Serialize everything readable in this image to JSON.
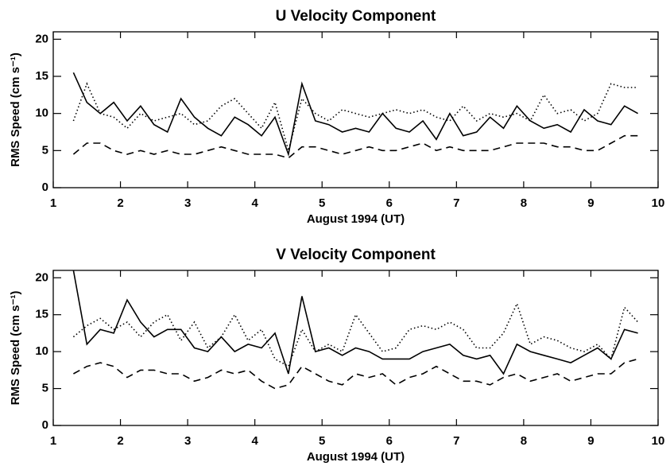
{
  "chart_data": [
    {
      "type": "line",
      "title": "U Velocity Component",
      "xlabel": "August 1994 (UT)",
      "ylabel": "RMS Speed (cm s⁻¹)",
      "x": [
        1.3,
        1.5,
        1.7,
        1.9,
        2.1,
        2.3,
        2.5,
        2.7,
        2.9,
        3.1,
        3.3,
        3.5,
        3.7,
        3.9,
        4.1,
        4.3,
        4.5,
        4.7,
        4.9,
        5.1,
        5.3,
        5.5,
        5.7,
        5.9,
        6.1,
        6.3,
        6.5,
        6.7,
        6.9,
        7.1,
        7.3,
        7.5,
        7.7,
        7.9,
        8.1,
        8.3,
        8.5,
        8.7,
        8.9,
        9.1,
        9.3,
        9.5,
        9.7
      ],
      "series": [
        {
          "color": "#000000",
          "line_style": "solid",
          "values": [
            15.5,
            11.5,
            10,
            11.5,
            9,
            11,
            8.5,
            7.5,
            12,
            9.5,
            8,
            7,
            9.5,
            8.5,
            7,
            9.5,
            4.5,
            14,
            9,
            8.5,
            7.5,
            8,
            7.5,
            10,
            8,
            7.5,
            9,
            6.5,
            10,
            7,
            7.5,
            9.5,
            8,
            11,
            9,
            8,
            8.5,
            7.5,
            10.5,
            9,
            8.5,
            11,
            10
          ]
        },
        {
          "color": "#000000",
          "line_style": "dotted",
          "values": [
            9,
            14,
            10,
            9.5,
            8,
            10,
            9,
            9.5,
            10,
            8.5,
            9,
            11,
            12,
            10,
            8,
            11.5,
            5,
            12,
            10,
            9,
            10.5,
            10,
            9.5,
            10,
            10.5,
            10,
            10.5,
            9.5,
            9,
            11,
            9,
            10,
            9.5,
            10,
            9,
            12.5,
            10,
            10.5,
            9,
            10,
            14,
            13.5,
            13.5
          ]
        },
        {
          "color": "#000000",
          "line_style": "dashed",
          "values": [
            4.5,
            6,
            6,
            5,
            4.5,
            5,
            4.5,
            5,
            4.5,
            4.5,
            5,
            5.5,
            5,
            4.5,
            4.5,
            4.5,
            4,
            5.5,
            5.5,
            5,
            4.5,
            5,
            5.5,
            5,
            5,
            5.5,
            6,
            5,
            5.5,
            5,
            5,
            5,
            5.5,
            6,
            6,
            6,
            5.5,
            5.5,
            5,
            5,
            6,
            7,
            7
          ]
        }
      ],
      "xlim": [
        1,
        10
      ],
      "xticks": [
        1,
        2,
        3,
        4,
        5,
        6,
        7,
        8,
        9,
        10
      ],
      "ylim": [
        0,
        21
      ],
      "yticks": [
        0,
        5,
        10,
        15,
        20
      ]
    },
    {
      "type": "line",
      "title": "V Velocity Component",
      "xlabel": "August 1994 (UT)",
      "ylabel": "RMS Speed (cm s⁻¹)",
      "x": [
        1.3,
        1.5,
        1.7,
        1.9,
        2.1,
        2.3,
        2.5,
        2.7,
        2.9,
        3.1,
        3.3,
        3.5,
        3.7,
        3.9,
        4.1,
        4.3,
        4.5,
        4.7,
        4.9,
        5.1,
        5.3,
        5.5,
        5.7,
        5.9,
        6.1,
        6.3,
        6.5,
        6.7,
        6.9,
        7.1,
        7.3,
        7.5,
        7.7,
        7.9,
        8.1,
        8.3,
        8.5,
        8.7,
        8.9,
        9.1,
        9.3,
        9.5,
        9.7
      ],
      "series": [
        {
          "color": "#000000",
          "line_style": "solid",
          "values": [
            21,
            11,
            13,
            12.5,
            17,
            14,
            12,
            13,
            13,
            10.5,
            10,
            12,
            10,
            11,
            10.5,
            12.5,
            7,
            17.5,
            10,
            10.5,
            9.5,
            10.5,
            10,
            9,
            9,
            9,
            10,
            10.5,
            11,
            9.5,
            9,
            9.5,
            7,
            11,
            10,
            9.5,
            9,
            8.5,
            9.5,
            10.5,
            9,
            13,
            12.5
          ]
        },
        {
          "color": "#000000",
          "line_style": "dotted",
          "values": [
            12,
            13.5,
            14.5,
            13,
            14,
            12,
            14,
            15,
            11.5,
            14,
            10.5,
            12,
            15,
            11.5,
            13,
            9,
            8,
            13,
            10,
            11,
            10,
            15,
            12.5,
            10,
            10.5,
            13,
            13.5,
            13,
            14,
            13,
            10.5,
            10.5,
            12.5,
            16.5,
            11,
            12,
            11.5,
            10.5,
            10,
            11,
            9,
            16,
            14
          ]
        },
        {
          "color": "#000000",
          "line_style": "dashed",
          "values": [
            7,
            8,
            8.5,
            8,
            6.5,
            7.5,
            7.5,
            7,
            7,
            6,
            6.5,
            7.5,
            7,
            7.5,
            6,
            5,
            5.5,
            8,
            7,
            6,
            5.5,
            7,
            6.5,
            7,
            5.5,
            6.5,
            7,
            8,
            7,
            6,
            6,
            5.5,
            6.5,
            7,
            6,
            6.5,
            7,
            6,
            6.5,
            7,
            7,
            8.5,
            9
          ]
        }
      ],
      "xlim": [
        1,
        10
      ],
      "xticks": [
        1,
        2,
        3,
        4,
        5,
        6,
        7,
        8,
        9,
        10
      ],
      "ylim": [
        0,
        21
      ],
      "yticks": [
        0,
        5,
        10,
        15,
        20
      ]
    }
  ]
}
